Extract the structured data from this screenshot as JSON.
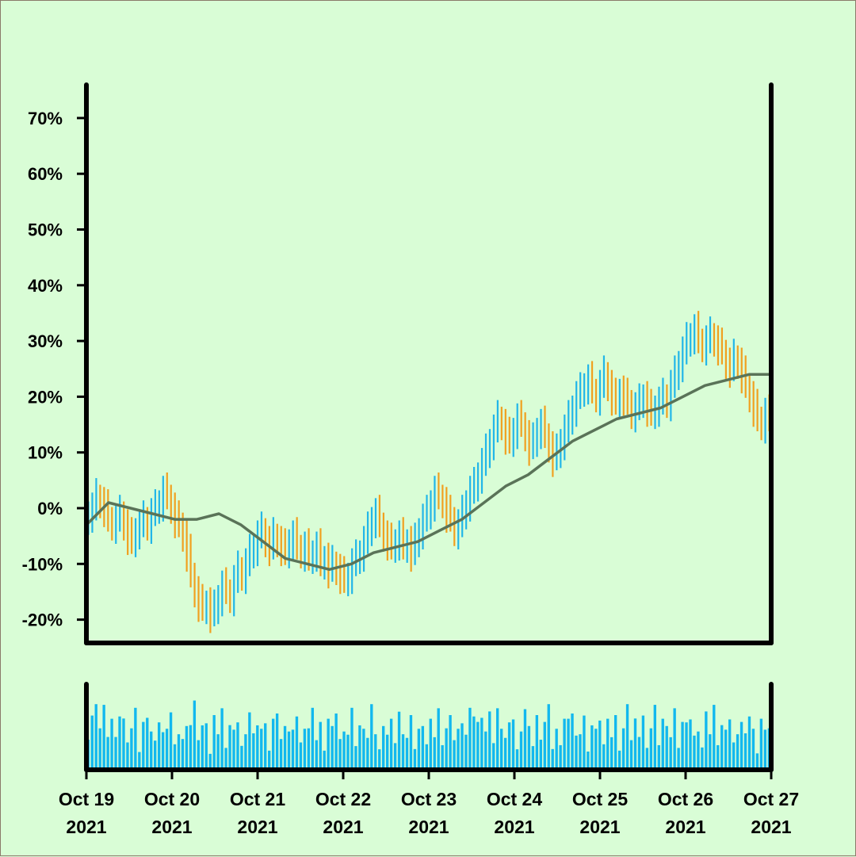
{
  "chart_data": {
    "type": "ohlc",
    "title": "",
    "xlabel": "",
    "ylabel": "",
    "x_range": [
      "2021-10-19",
      "2021-10-27"
    ],
    "ylim": [
      -24,
      76
    ],
    "y_tick_labels": [
      "-20%",
      "-10%",
      "0%",
      "10%",
      "20%",
      "30%",
      "40%",
      "50%",
      "60%",
      "70%"
    ],
    "y_ticks": [
      -20,
      -10,
      0,
      10,
      20,
      30,
      40,
      50,
      60,
      70
    ],
    "x_tick_labels": [
      {
        "day": "Oct 19",
        "year": "2021"
      },
      {
        "day": "Oct 20",
        "year": "2021"
      },
      {
        "day": "Oct 21",
        "year": "2021"
      },
      {
        "day": "Oct 22",
        "year": "2021"
      },
      {
        "day": "Oct 23",
        "year": "2021"
      },
      {
        "day": "Oct 24",
        "year": "2021"
      },
      {
        "day": "Oct 25",
        "year": "2021"
      },
      {
        "day": "Oct 26",
        "year": "2021"
      },
      {
        "day": "Oct 27",
        "year": "2021"
      }
    ],
    "bars_per_day": 24,
    "price_close_percent": [
      -1,
      0,
      2,
      1,
      0,
      -2,
      -3,
      -2,
      -1,
      -3,
      -5,
      -6,
      -4,
      -3,
      -2,
      -3,
      -1,
      0,
      1,
      3,
      2,
      0,
      -2,
      -3,
      -5,
      -8,
      -12,
      -15,
      -17,
      -18,
      -17,
      -19,
      -18,
      -16,
      -14,
      -15,
      -16,
      -13,
      -11,
      -12,
      -10,
      -8,
      -7,
      -5,
      -4,
      -6,
      -7,
      -5,
      -6,
      -7,
      -8,
      -6,
      -5,
      -7,
      -8,
      -7,
      -9,
      -8,
      -7,
      -10,
      -9,
      -11,
      -10,
      -11,
      -12,
      -13,
      -12,
      -10,
      -9,
      -8,
      -6,
      -4,
      -2,
      -1,
      -3,
      -5,
      -6,
      -7,
      -6,
      -5,
      -7,
      -6,
      -8,
      -6,
      -4,
      -2,
      -1,
      1,
      3,
      2,
      1,
      -1,
      -2,
      -4,
      -3,
      -1,
      1,
      3,
      4,
      6,
      8,
      10,
      12,
      14,
      16,
      15,
      13,
      12,
      14,
      16,
      15,
      13,
      11,
      12,
      14,
      15,
      13,
      11,
      9,
      10,
      12,
      14,
      16,
      18,
      20,
      21,
      22,
      23,
      21,
      20,
      22,
      24,
      22,
      20,
      19,
      21,
      20,
      19,
      17,
      18,
      19,
      20,
      18,
      17,
      18,
      19,
      20,
      19,
      22,
      24,
      26,
      28,
      30,
      31,
      32,
      30,
      29,
      30,
      31,
      30,
      29,
      28,
      26,
      25,
      27,
      26,
      24,
      22,
      20,
      18,
      16,
      15,
      17,
      16
    ],
    "ma_percent": [
      -3,
      1,
      0,
      -1,
      -2,
      -2,
      -1,
      -3,
      -6,
      -9,
      -10,
      -11,
      -10,
      -8,
      -7,
      -6,
      -4,
      -2,
      1,
      4,
      6,
      9,
      12,
      14,
      16,
      17,
      18,
      20,
      22,
      23,
      24,
      24
    ],
    "volume_relative": [
      0.55,
      0.85,
      0.9,
      0.7,
      0.95,
      0.6,
      0.8,
      0.45,
      0.9,
      0.75,
      0.5,
      0.65,
      0.85,
      0.3,
      0.7,
      0.95,
      0.6,
      0.4,
      0.8,
      0.55,
      0.75,
      0.9,
      0.35,
      0.6,
      0.45,
      0.8,
      0.7,
      0.95,
      0.5,
      0.65,
      0.85,
      0.25,
      0.75,
      0.6,
      0.9,
      0.4,
      0.7,
      0.55,
      0.8,
      0.35,
      0.65,
      0.9,
      0.5,
      0.75,
      0.6,
      0.85,
      0.3,
      0.7,
      0.95,
      0.45,
      0.8,
      0.6,
      0.55,
      0.9,
      0.4,
      0.75,
      0.65,
      0.85,
      0.5,
      0.7,
      0.35,
      0.8,
      0.6,
      0.95,
      0.45,
      0.7,
      0.55,
      0.85,
      0.4,
      0.65,
      0.75,
      0.5,
      0.9,
      0.6,
      0.3,
      0.8,
      0.55,
      0.7,
      0.45,
      0.85,
      0.65,
      0.5,
      0.75,
      0.35,
      0.6,
      0.8,
      0.4,
      0.7,
      0.55,
      0.9,
      0.45,
      0.65,
      0.75,
      0.5,
      0.6,
      0.85
    ],
    "ohlc_up_color": "#22b6e8",
    "ohlc_down_color": "#f0a020",
    "moving_average_color": "#5a7358",
    "volume_color": "#12b8ee",
    "background_color": "#d9fdd6",
    "grid": false
  }
}
